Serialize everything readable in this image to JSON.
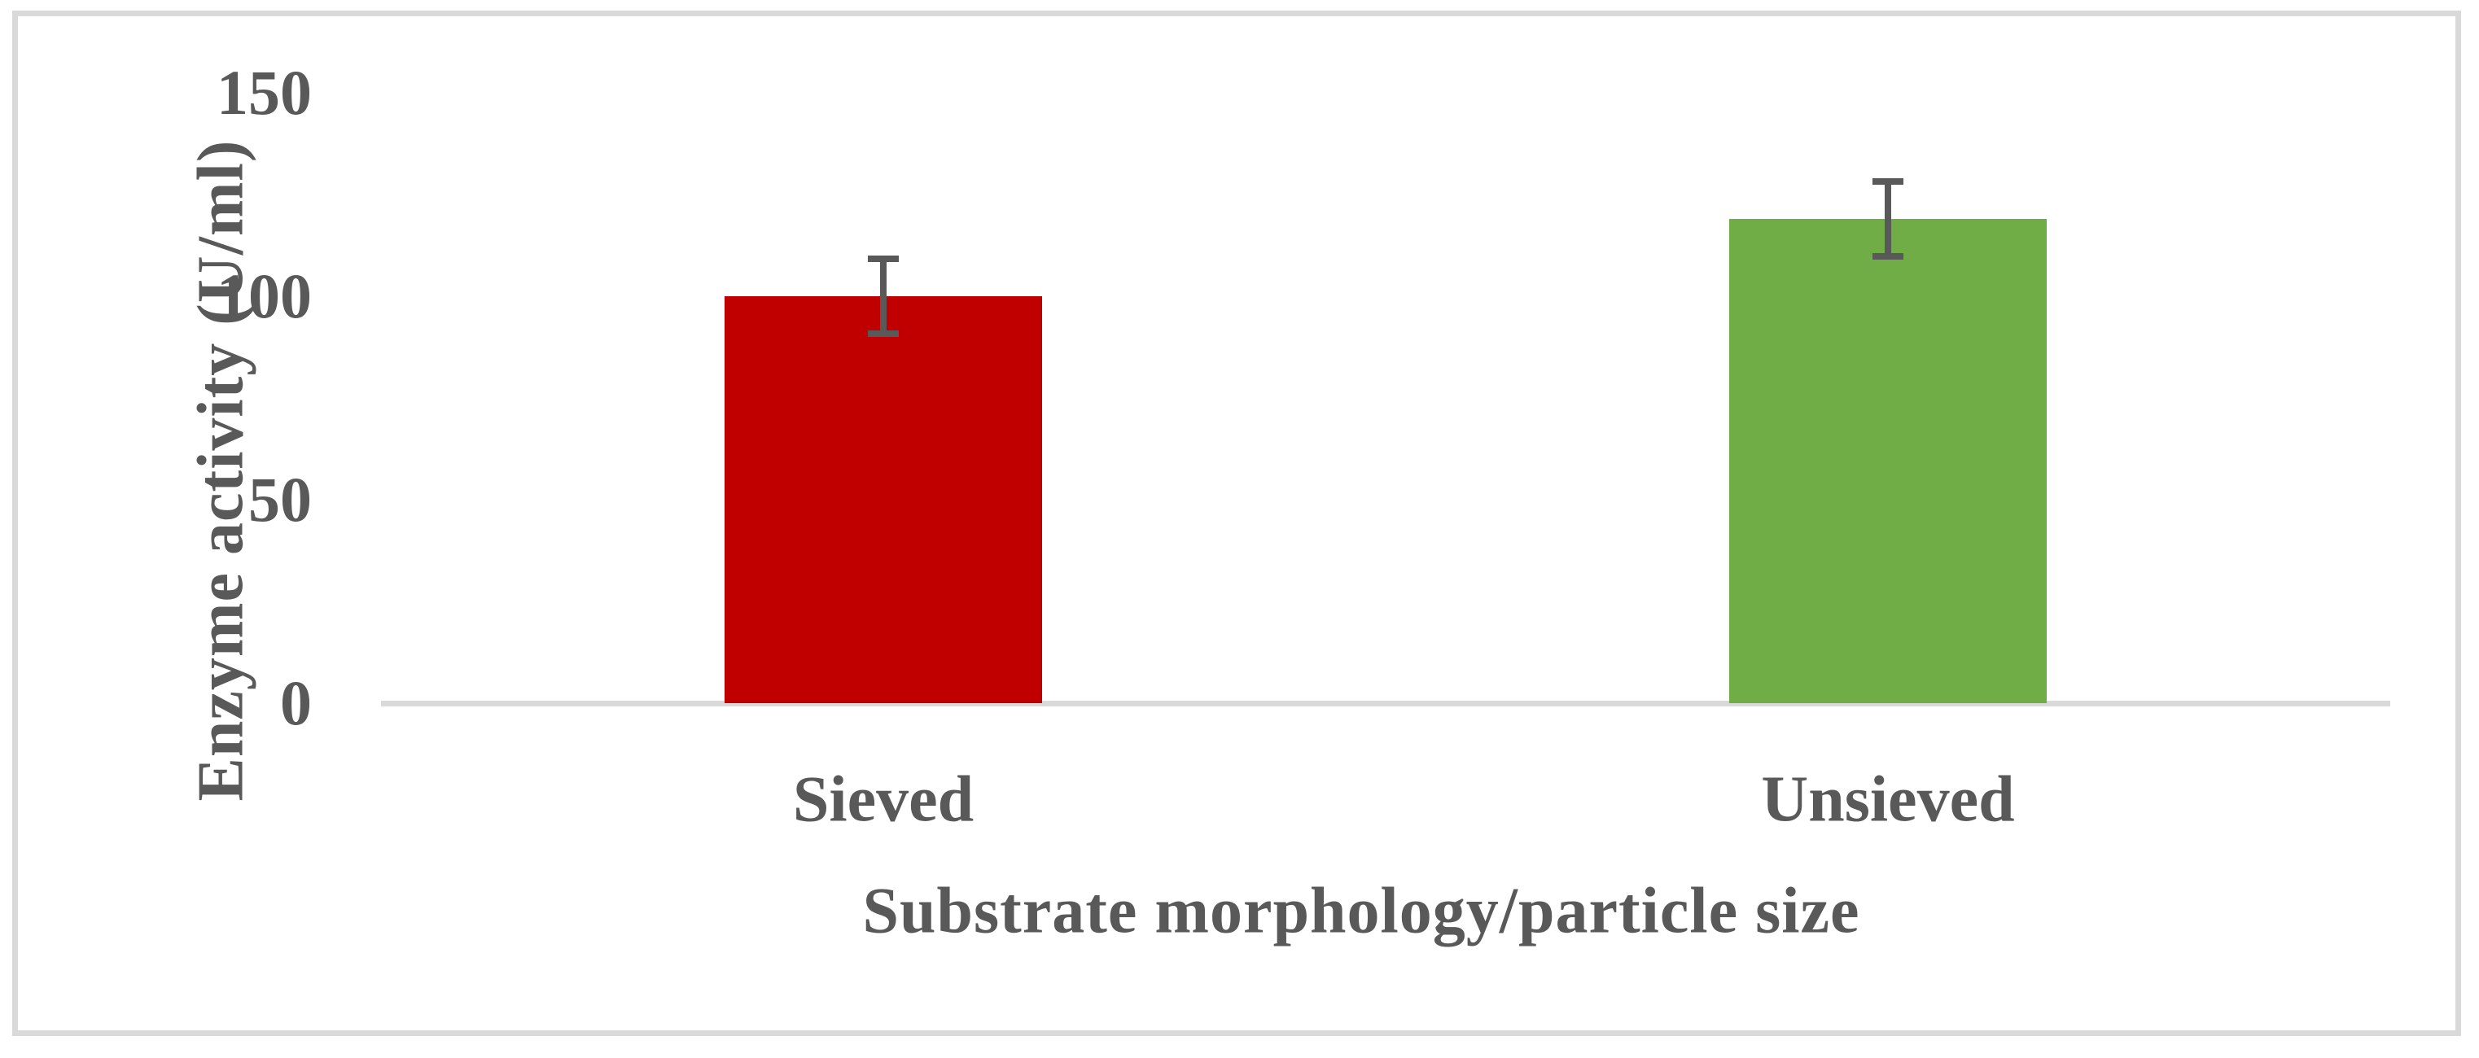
{
  "figure": {
    "background_color": "#ffffff",
    "frame_color": "#d9d9d9",
    "text_color": "#595959"
  },
  "chart_data": {
    "type": "bar",
    "title": "",
    "categories": [
      "Sieved",
      "Unsieved"
    ],
    "values": [
      100,
      119
    ],
    "errors": [
      10,
      10
    ],
    "bar_colors": [
      "#c00000",
      "#70ad47"
    ],
    "xlabel": "Substrate morphology/particle size",
    "ylabel": "Enzyme activity (U/ml)",
    "yticks": [
      0,
      50,
      100,
      150
    ],
    "ylim": [
      0,
      150
    ],
    "grid": false,
    "legend": "none",
    "error_bar_color": "#595959",
    "axis_line_color": "#d9d9d9",
    "tick_label_color": "#595959"
  }
}
